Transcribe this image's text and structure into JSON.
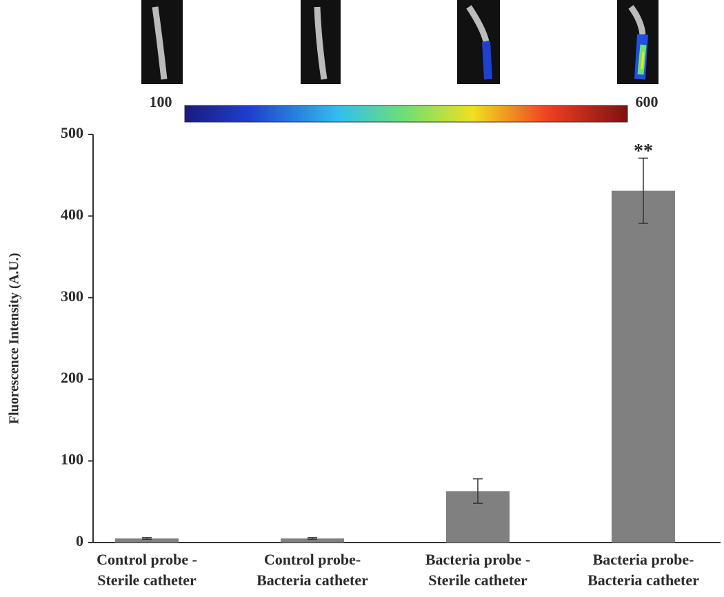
{
  "chart_data": {
    "type": "bar",
    "ylabel": "Fluorescence Intensity (A.U.)",
    "categories": [
      [
        "Control probe -",
        "Sterile catheter"
      ],
      [
        "Control probe-",
        "Bacteria catheter"
      ],
      [
        "Bacteria probe -",
        "Sterile catheter"
      ],
      [
        "Bacteria probe-",
        "Bacteria catheter"
      ]
    ],
    "values": [
      5,
      5,
      63,
      431
    ],
    "errors": [
      1,
      1,
      15,
      40
    ],
    "color": "#808080",
    "ylim": [
      0,
      500
    ],
    "yticks": [
      0,
      100,
      200,
      300,
      400,
      500
    ],
    "annotations": [
      {
        "category": 3,
        "text": "**"
      }
    ],
    "colorbar": {
      "min": 100,
      "max": 600
    }
  }
}
